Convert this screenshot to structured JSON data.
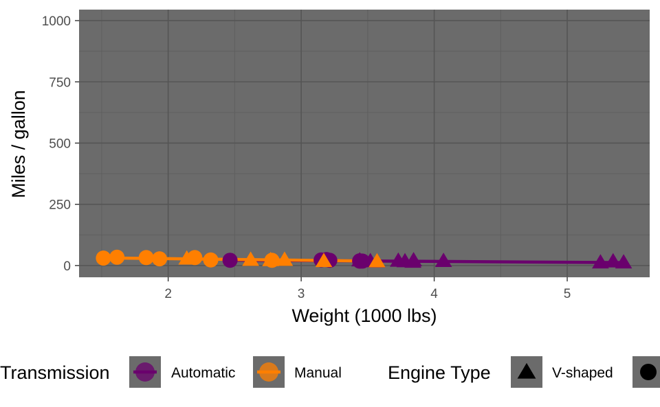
{
  "chart_data": {
    "type": "scatter",
    "xlabel": "Weight (1000 lbs)",
    "ylabel": "Miles / gallon",
    "xlim": [
      1.33,
      5.62
    ],
    "ylim": [
      -48,
      1045
    ],
    "xticks": [
      {
        "value": 2,
        "label": "2"
      },
      {
        "value": 3,
        "label": "3"
      },
      {
        "value": 4,
        "label": "4"
      },
      {
        "value": 5,
        "label": "5"
      }
    ],
    "yticks": [
      {
        "value": 0,
        "label": "0"
      },
      {
        "value": 250,
        "label": "250"
      },
      {
        "value": 500,
        "label": "500"
      },
      {
        "value": 750,
        "label": "750"
      },
      {
        "value": 1000,
        "label": "1000"
      }
    ],
    "grid": true,
    "panel_background": "#6b6b6b",
    "colors": {
      "Automatic": "#6a006d",
      "Manual": "#ff7f00"
    },
    "legends": [
      {
        "title": "Transmission",
        "entries": [
          {
            "key": "Automatic",
            "label": "Automatic"
          },
          {
            "key": "Manual",
            "label": "Manual"
          }
        ]
      },
      {
        "title": "Engine Type",
        "entries": [
          {
            "shape": "triangle",
            "label": "V-shaped"
          },
          {
            "shape": "circle",
            "label": ""
          }
        ]
      }
    ],
    "trend_lines": [
      {
        "series": "Automatic",
        "points": [
          [
            2.46,
            22
          ],
          [
            5.42,
            12
          ]
        ]
      },
      {
        "series": "Manual",
        "points": [
          [
            1.51,
            31
          ],
          [
            3.57,
            18
          ]
        ]
      }
    ],
    "series": [
      {
        "name": "Automatic",
        "points": [
          {
            "x": 2.465,
            "y": 21.5,
            "shape": "circle"
          },
          {
            "x": 3.15,
            "y": 22.8,
            "shape": "circle"
          },
          {
            "x": 3.19,
            "y": 24.4,
            "shape": "circle"
          },
          {
            "x": 3.215,
            "y": 21.4,
            "shape": "circle"
          },
          {
            "x": 3.44,
            "y": 19.2,
            "shape": "circle"
          },
          {
            "x": 3.44,
            "y": 17.8,
            "shape": "circle"
          },
          {
            "x": 3.46,
            "y": 18.1,
            "shape": "circle"
          },
          {
            "x": 3.44,
            "y": 18.7,
            "shape": "triangle"
          },
          {
            "x": 3.52,
            "y": 15.5,
            "shape": "triangle"
          },
          {
            "x": 3.57,
            "y": 14.3,
            "shape": "triangle"
          },
          {
            "x": 3.73,
            "y": 17.3,
            "shape": "triangle"
          },
          {
            "x": 3.78,
            "y": 15.2,
            "shape": "triangle"
          },
          {
            "x": 3.84,
            "y": 13.3,
            "shape": "triangle"
          },
          {
            "x": 3.845,
            "y": 19.2,
            "shape": "triangle"
          },
          {
            "x": 4.07,
            "y": 16.4,
            "shape": "triangle"
          },
          {
            "x": 5.25,
            "y": 10.4,
            "shape": "triangle"
          },
          {
            "x": 5.345,
            "y": 14.7,
            "shape": "triangle"
          },
          {
            "x": 5.424,
            "y": 10.4,
            "shape": "triangle"
          }
        ]
      },
      {
        "name": "Manual",
        "points": [
          {
            "x": 1.513,
            "y": 30.4,
            "shape": "circle"
          },
          {
            "x": 1.615,
            "y": 33.9,
            "shape": "circle"
          },
          {
            "x": 1.835,
            "y": 32.4,
            "shape": "circle"
          },
          {
            "x": 1.935,
            "y": 27.3,
            "shape": "circle"
          },
          {
            "x": 2.2,
            "y": 32.4,
            "shape": "circle"
          },
          {
            "x": 2.32,
            "y": 22.8,
            "shape": "circle"
          },
          {
            "x": 2.78,
            "y": 21.4,
            "shape": "circle"
          },
          {
            "x": 2.14,
            "y": 26.0,
            "shape": "triangle"
          },
          {
            "x": 2.62,
            "y": 21.0,
            "shape": "triangle"
          },
          {
            "x": 2.77,
            "y": 19.7,
            "shape": "triangle"
          },
          {
            "x": 2.875,
            "y": 21.0,
            "shape": "triangle"
          },
          {
            "x": 3.17,
            "y": 15.8,
            "shape": "triangle"
          },
          {
            "x": 3.57,
            "y": 15.0,
            "shape": "triangle"
          }
        ]
      }
    ]
  }
}
